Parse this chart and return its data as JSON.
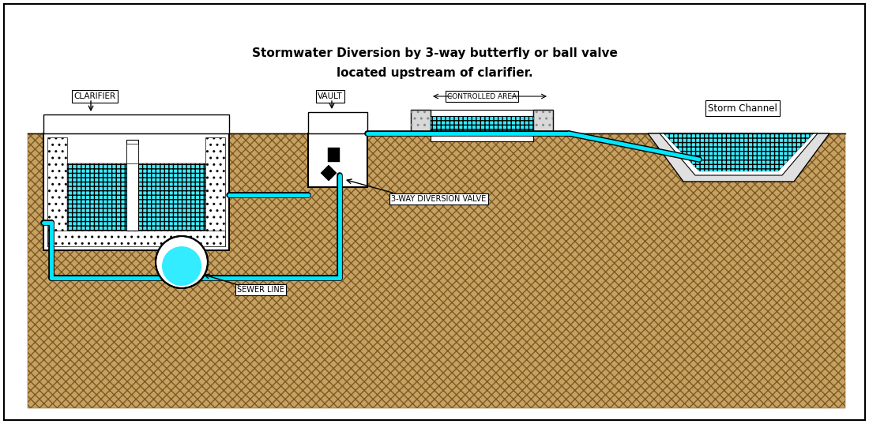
{
  "title_line1": "Stormwater Diversion by 3-way butterfly or ball valve",
  "title_line2": "located upstream of clarifier.",
  "bg_color": "#ffffff",
  "ground_color": "#C8A064",
  "water_color": "#00E8FF",
  "water_alpha": 0.75,
  "label_clarifier": "CLARIFIER",
  "label_vault": "VAULT",
  "label_controlled": "CONTROLLED AREA",
  "label_storm": "Storm Channel",
  "label_valve": "3-WAY DIVERSION VALVE",
  "label_sewer": "SEWER LINE",
  "xlim": [
    0,
    110
  ],
  "ylim": [
    0,
    53.7
  ]
}
